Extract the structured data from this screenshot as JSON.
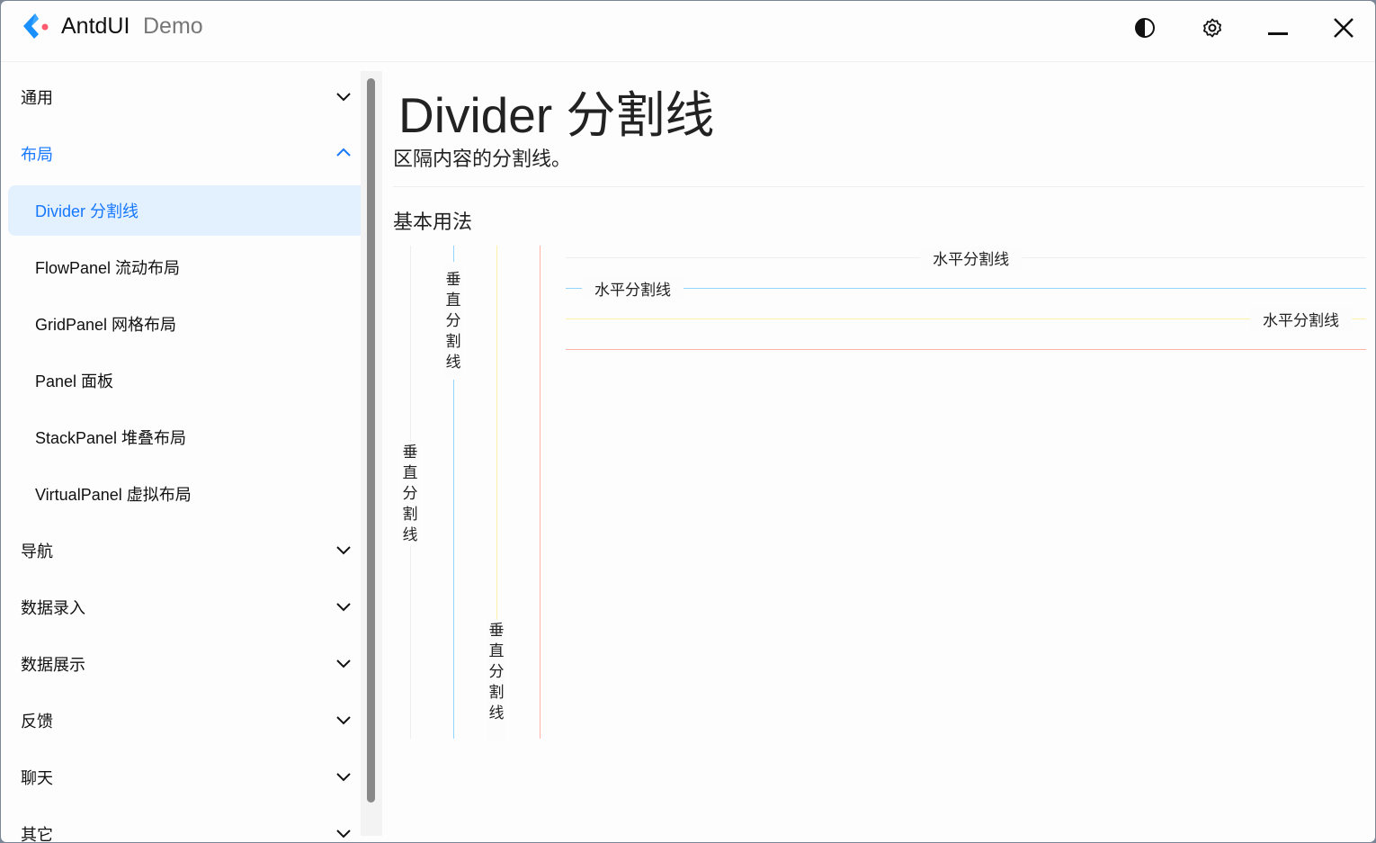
{
  "app": {
    "title": "AntdUI",
    "subtitle": "Demo"
  },
  "titlebar": {
    "icons": [
      "theme-toggle-icon",
      "settings-gear-icon",
      "minimize-icon",
      "close-icon"
    ]
  },
  "sidebar": {
    "items": [
      {
        "label": "通用",
        "type": "group",
        "expanded": false
      },
      {
        "label": "布局",
        "type": "group",
        "expanded": true
      },
      {
        "label": "Divider 分割线",
        "type": "sub",
        "active": true
      },
      {
        "label": "FlowPanel 流动布局",
        "type": "sub"
      },
      {
        "label": "GridPanel 网格布局",
        "type": "sub"
      },
      {
        "label": "Panel 面板",
        "type": "sub"
      },
      {
        "label": "StackPanel 堆叠布局",
        "type": "sub"
      },
      {
        "label": "VirtualPanel 虚拟布局",
        "type": "sub"
      },
      {
        "label": "导航",
        "type": "group"
      },
      {
        "label": "数据录入",
        "type": "group"
      },
      {
        "label": "数据展示",
        "type": "group"
      },
      {
        "label": "反馈",
        "type": "group"
      },
      {
        "label": "聊天",
        "type": "group"
      },
      {
        "label": "其它",
        "type": "group"
      }
    ]
  },
  "main": {
    "title": "Divider 分割线",
    "description": "区隔内容的分割线。",
    "section": "基本用法",
    "vertical_text": "垂直分割线",
    "horizontal_text": "水平分割线"
  },
  "colors": {
    "accent": "#1677ff",
    "blue": "#91d5ff",
    "yellow": "#fff1a8",
    "red": "#ffb3a7",
    "grey": "#eeeeee"
  }
}
